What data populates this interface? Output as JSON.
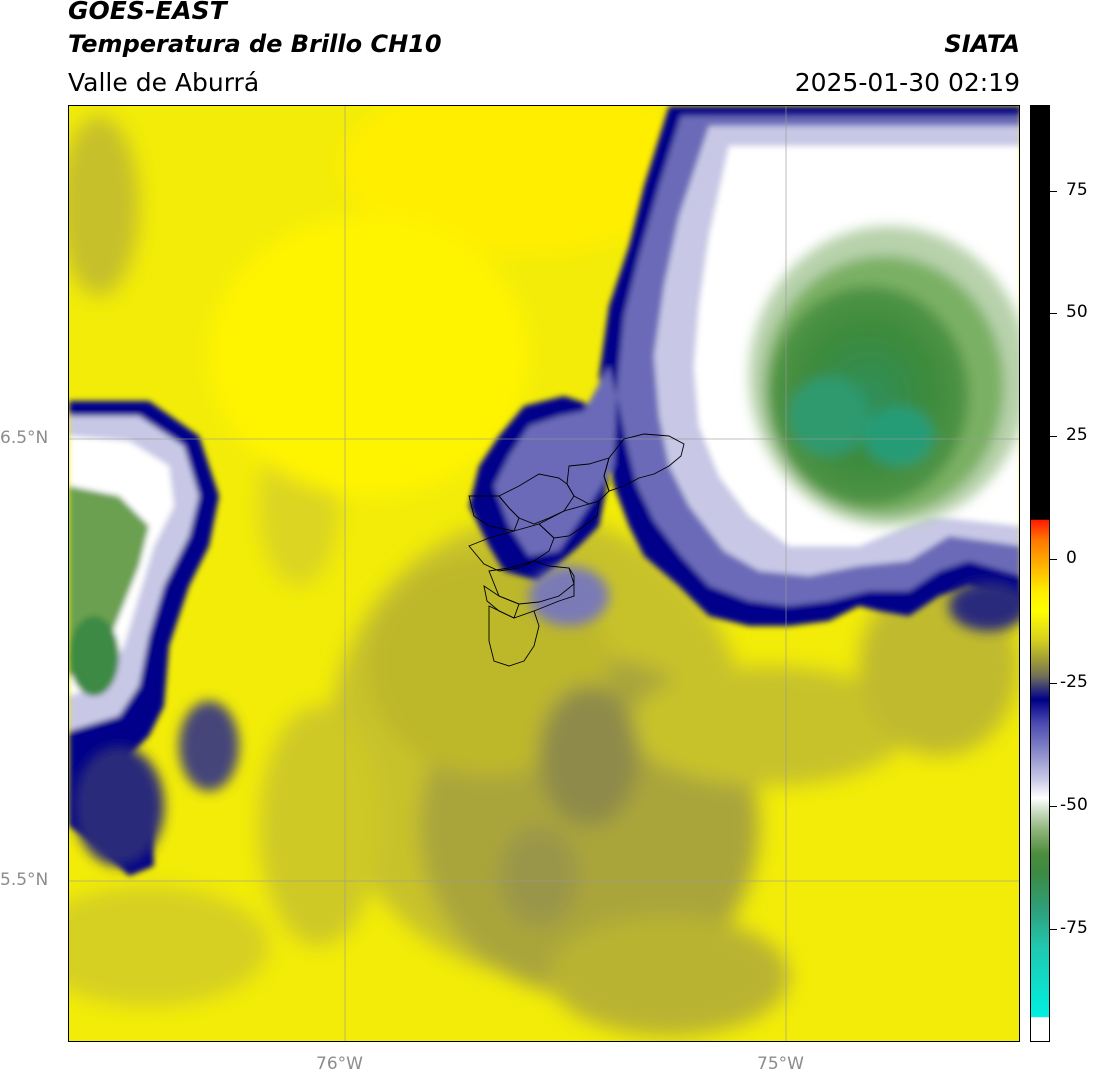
{
  "header": {
    "satellite": "GOES-EAST",
    "product": "Temperatura de Brillo CH10",
    "region": "Valle de Aburrá",
    "agency": "SIATA",
    "datetime": "2025-01-30 02:19"
  },
  "map": {
    "lat_labels": [
      "6.5°N",
      "5.5°N"
    ],
    "lon_labels": [
      "76°W",
      "75°W"
    ],
    "gridlines": "on"
  },
  "colorbar": {
    "ticks": [
      "75",
      "50",
      "25",
      "0",
      "-25",
      "-50",
      "-75"
    ],
    "colors": [
      "#000000",
      "#ff1a00",
      "#ffff00",
      "#000088",
      "#ffffff",
      "#3c8a44",
      "#00f0e0"
    ]
  }
}
